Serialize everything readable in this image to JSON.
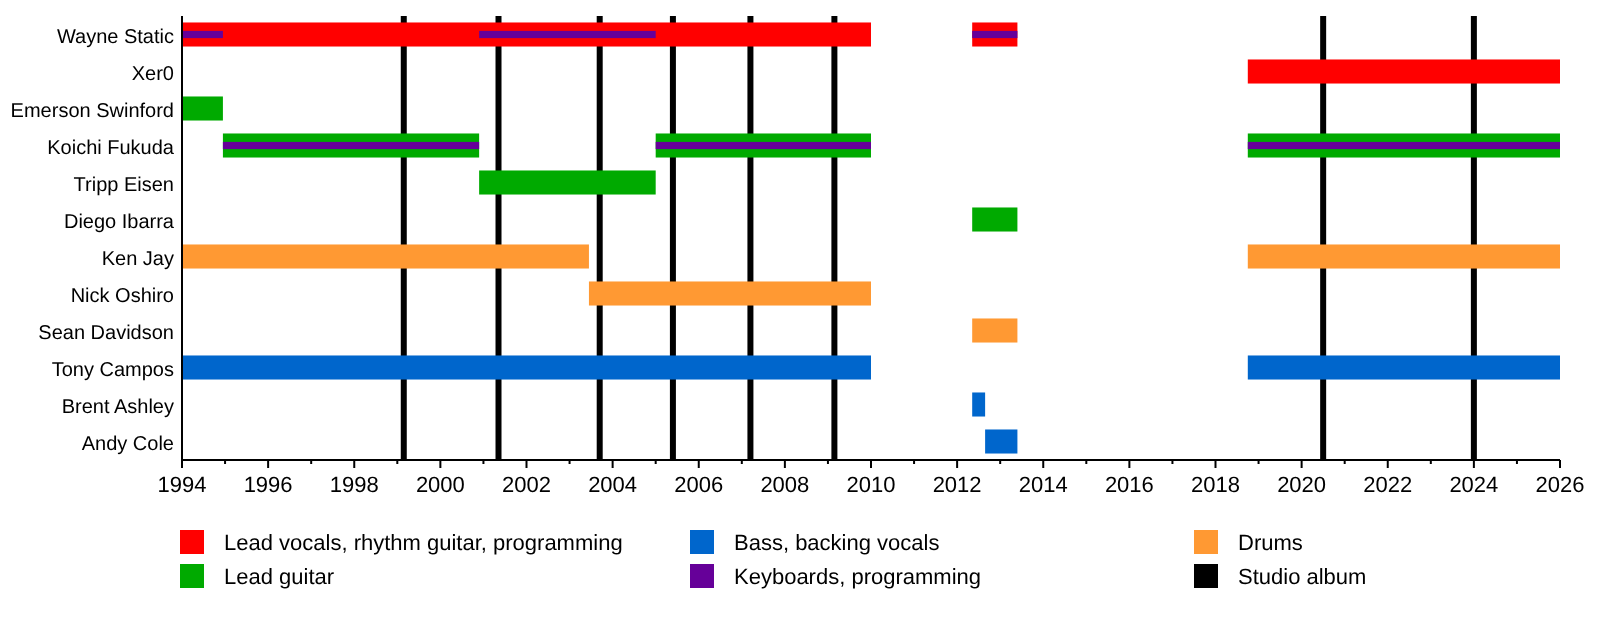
{
  "chart_data": {
    "type": "bar",
    "orientation": "horizontal",
    "categories": [
      "Wayne Static",
      "Xer0",
      "Emerson Swinford",
      "Koichi Fukuda",
      "Tripp Eisen",
      "Diego Ibarra",
      "Ken Jay",
      "Nick Oshiro",
      "Sean Davidson",
      "Tony Campos",
      "Brent Ashley",
      "Andy Cole"
    ],
    "xlim": [
      1994,
      2026
    ],
    "xticks": [
      1994,
      {
        "value": 1995,
        "label": null
      },
      1996,
      {
        "value": 1997,
        "label": null
      },
      1998,
      {
        "value": 1999,
        "label": null
      },
      2000,
      {
        "value": 2001,
        "label": null
      },
      2002,
      {
        "value": 2003,
        "label": null
      },
      2004,
      {
        "value": 2005,
        "label": null
      },
      2006,
      {
        "value": 2007,
        "label": null
      },
      2008,
      {
        "value": 2009,
        "label": null
      },
      2010,
      {
        "value": 2011,
        "label": null
      },
      2012,
      {
        "value": 2013,
        "label": null
      },
      2014,
      {
        "value": 2015,
        "label": null
      },
      2016,
      {
        "value": 2017,
        "label": null
      },
      2018,
      {
        "value": 2019,
        "label": null
      },
      2020,
      {
        "value": 2021,
        "label": null
      },
      2022,
      {
        "value": 2023,
        "label": null
      },
      2024,
      {
        "value": 2025,
        "label": null
      },
      2026
    ],
    "series": [
      {
        "name": "Lead vocals, rhythm guitar, programming",
        "color": "#ff0000",
        "base": [
          1994,
          2018.75,
          null,
          null,
          null,
          null,
          null,
          null,
          null,
          null,
          null,
          null
        ],
        "values": [
          16,
          7.25,
          null,
          null,
          null,
          null,
          null,
          null,
          null,
          null,
          null,
          null
        ]
      },
      {
        "color": "#ff0000",
        "base": [
          2012.35,
          null,
          null,
          null,
          null,
          null,
          null,
          null,
          null,
          null,
          null,
          null
        ],
        "values": [
          1.05,
          null,
          null,
          null,
          null,
          null,
          null,
          null,
          null,
          null,
          null,
          null
        ]
      },
      {
        "name": "Lead guitar",
        "color": "#00aa00",
        "base": [
          null,
          null,
          1994,
          1994.95,
          2000.9,
          2012.35,
          null,
          null,
          null,
          null,
          null,
          null
        ],
        "values": [
          null,
          null,
          0.95,
          5.95,
          4.1,
          1.05,
          null,
          null,
          null,
          null,
          null,
          null
        ]
      },
      {
        "color": "#00aa00",
        "base": [
          null,
          null,
          null,
          2005,
          null,
          null,
          null,
          null,
          null,
          null,
          null,
          null
        ],
        "values": [
          null,
          null,
          null,
          5,
          null,
          null,
          null,
          null,
          null,
          null,
          null,
          null
        ]
      },
      {
        "color": "#00aa00",
        "base": [
          null,
          null,
          null,
          2018.75,
          null,
          null,
          null,
          null,
          null,
          null,
          null,
          null
        ],
        "values": [
          null,
          null,
          null,
          7.25,
          null,
          null,
          null,
          null,
          null,
          null,
          null,
          null
        ]
      },
      {
        "name": "Bass, backing vocals",
        "color": "#0066cc",
        "base": [
          null,
          null,
          null,
          null,
          null,
          null,
          null,
          null,
          null,
          1994,
          2012.35,
          2012.65
        ],
        "values": [
          null,
          null,
          null,
          null,
          null,
          null,
          null,
          null,
          null,
          16,
          0.3,
          0.75
        ]
      },
      {
        "color": "#0066cc",
        "base": [
          null,
          null,
          null,
          null,
          null,
          null,
          null,
          null,
          null,
          2018.75,
          null,
          null
        ],
        "values": [
          null,
          null,
          null,
          null,
          null,
          null,
          null,
          null,
          null,
          7.25,
          null,
          null
        ]
      },
      {
        "name": "Keyboards, programming",
        "color": "#660099",
        "base": [
          1994,
          null,
          null,
          1994.95,
          null,
          null,
          null,
          null,
          null,
          null,
          null,
          null
        ],
        "values": [
          0.95,
          null,
          null,
          5.95,
          null,
          null,
          null,
          null,
          null,
          null,
          null,
          null
        ]
      },
      {
        "color": "#660099",
        "base": [
          2000.9,
          null,
          null,
          2005,
          null,
          null,
          null,
          null,
          null,
          null,
          null,
          null
        ],
        "values": [
          4.1,
          null,
          null,
          5,
          null,
          null,
          null,
          null,
          null,
          null,
          null,
          null
        ]
      },
      {
        "color": "#660099",
        "base": [
          2012.35,
          null,
          null,
          2018.75,
          null,
          null,
          null,
          null,
          null,
          null,
          null,
          null
        ],
        "values": [
          1.05,
          null,
          null,
          7.25,
          null,
          null,
          null,
          null,
          null,
          null,
          null,
          null
        ]
      },
      {
        "name": "Drums",
        "color": "#ff9933",
        "base": [
          null,
          null,
          null,
          null,
          null,
          null,
          1994,
          2003.45,
          2012.35,
          null,
          null,
          null
        ],
        "values": [
          null,
          null,
          null,
          null,
          null,
          null,
          9.45,
          6.55,
          1.05,
          null,
          null,
          null
        ]
      },
      {
        "color": "#ff9933",
        "base": [
          null,
          null,
          null,
          null,
          null,
          null,
          2018.75,
          null,
          null,
          null,
          null,
          null
        ],
        "values": [
          null,
          null,
          null,
          null,
          null,
          null,
          7.25,
          null,
          null,
          null,
          null,
          null
        ]
      }
    ],
    "ref_lines": [
      {
        "axis": "x",
        "value": 1999.15,
        "label": "Studio album",
        "color": "#000000"
      },
      {
        "axis": "x",
        "value": 2001.35,
        "color": "#000000"
      },
      {
        "axis": "x",
        "value": 2003.7,
        "color": "#000000"
      },
      {
        "axis": "x",
        "value": 2005.4,
        "color": "#000000"
      },
      {
        "axis": "x",
        "value": 2007.2,
        "color": "#000000"
      },
      {
        "axis": "x",
        "value": 2009.15,
        "color": "#000000"
      },
      {
        "axis": "x",
        "value": 2020.5,
        "color": "#000000"
      },
      {
        "axis": "x",
        "value": 2024,
        "color": "#000000"
      }
    ],
    "legend": "bottom",
    "grid": false
  }
}
